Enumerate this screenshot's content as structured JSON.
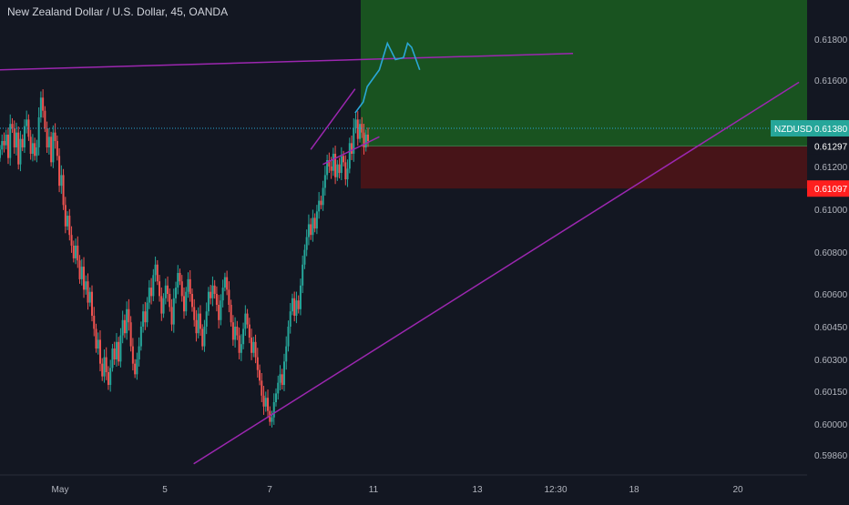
{
  "header": {
    "title": "New Zealand Dollar / U.S. Dollar, 45, OANDA"
  },
  "colors": {
    "background": "#131722",
    "up_candle": "#26a69a",
    "down_candle": "#ef5350",
    "trendline": "#9c27b0",
    "target_zone": "#1b5e20",
    "stop_zone": "#4a1418",
    "projection": "#2aa7d6",
    "price_label": "#26a69a",
    "stop_label": "#ff1f1f"
  },
  "chart_data": {
    "type": "candlestick",
    "symbol": "NZDUSD",
    "y_ticks": [
      "0.61800",
      "0.61600",
      "0.61380",
      "0.61297",
      "0.61200",
      "0.61097",
      "0.61000",
      "0.60800",
      "0.60600",
      "0.60450",
      "0.60300",
      "0.60150",
      "0.60000",
      "0.59860"
    ],
    "x_ticks": [
      "May",
      "5",
      "7",
      "11",
      "13",
      "12:30",
      "18",
      "20"
    ],
    "current_price": {
      "label": "NZDUSD",
      "value": "0.61380"
    },
    "entry_price": "0.61297",
    "stop_price": "0.61097",
    "target_price_top": 0.6192,
    "trendlines": [
      {
        "name": "upper-resistance",
        "from": [
          0.0,
          0.6165
        ],
        "to": [
          0.71,
          0.6187
        ]
      },
      {
        "name": "rising-support",
        "from": [
          0.24,
          0.5982
        ],
        "to": [
          0.99,
          0.6159
        ]
      },
      {
        "name": "channel-upper",
        "from": [
          0.385,
          0.6128
        ],
        "to": [
          0.44,
          0.6156
        ]
      },
      {
        "name": "channel-lower",
        "from": [
          0.4,
          0.6121
        ],
        "to": [
          0.47,
          0.6134
        ]
      }
    ],
    "projection_path": [
      [
        0.44,
        0.6145
      ],
      [
        0.45,
        0.615
      ],
      [
        0.455,
        0.6157
      ],
      [
        0.47,
        0.6165
      ],
      [
        0.48,
        0.6182
      ],
      [
        0.49,
        0.619
      ],
      [
        0.5,
        0.6189
      ],
      [
        0.505,
        0.6178
      ],
      [
        0.51,
        0.6176
      ],
      [
        0.52,
        0.6195
      ]
    ],
    "close_series": [
      0.6128,
      0.6132,
      0.613,
      0.6135,
      0.6124,
      0.614,
      0.6138,
      0.6129,
      0.6136,
      0.6121,
      0.6133,
      0.6129,
      0.6139,
      0.6142,
      0.6134,
      0.6126,
      0.6131,
      0.6125,
      0.6129,
      0.6143,
      0.6152,
      0.6146,
      0.6138,
      0.6129,
      0.6134,
      0.6122,
      0.6136,
      0.6132,
      0.6125,
      0.6111,
      0.6116,
      0.6102,
      0.6092,
      0.6097,
      0.6088,
      0.6083,
      0.6077,
      0.6083,
      0.6076,
      0.6067,
      0.6073,
      0.6062,
      0.6066,
      0.6056,
      0.6061,
      0.605,
      0.6044,
      0.6035,
      0.6039,
      0.6028,
      0.6022,
      0.6031,
      0.6024,
      0.6018,
      0.6026,
      0.6035,
      0.603,
      0.6038,
      0.6029,
      0.6041,
      0.6048,
      0.6042,
      0.6053,
      0.6047,
      0.6036,
      0.6028,
      0.6023,
      0.603,
      0.6036,
      0.6045,
      0.6052,
      0.6047,
      0.6056,
      0.6063,
      0.6059,
      0.6069,
      0.6074,
      0.6066,
      0.6059,
      0.6051,
      0.6058,
      0.6064,
      0.606,
      0.6054,
      0.6046,
      0.6058,
      0.6063,
      0.607,
      0.6066,
      0.6059,
      0.6052,
      0.6061,
      0.6067,
      0.606,
      0.6054,
      0.6048,
      0.6042,
      0.6051,
      0.6044,
      0.6036,
      0.6045,
      0.6052,
      0.6061,
      0.6058,
      0.6064,
      0.606,
      0.6055,
      0.6048,
      0.6057,
      0.6063,
      0.6068,
      0.6062,
      0.6055,
      0.6047,
      0.6039,
      0.6045,
      0.6041,
      0.6033,
      0.6037,
      0.6044,
      0.6051,
      0.6046,
      0.604,
      0.6033,
      0.6038,
      0.6031,
      0.6025,
      0.602,
      0.6013,
      0.6008,
      0.6012,
      0.6006,
      0.6001,
      0.6003,
      0.601,
      0.6014,
      0.6019,
      0.6023,
      0.6018,
      0.6029,
      0.6036,
      0.6045,
      0.6052,
      0.6058,
      0.605,
      0.6057,
      0.6053,
      0.6064,
      0.6074,
      0.6081,
      0.6087,
      0.6093,
      0.6088,
      0.6096,
      0.6091,
      0.6099,
      0.6104,
      0.6102,
      0.611,
      0.6116,
      0.6123,
      0.612,
      0.6118,
      0.6126,
      0.6115,
      0.6121,
      0.6117,
      0.6125,
      0.6122,
      0.6114,
      0.6119,
      0.6131,
      0.6126,
      0.6138,
      0.6142,
      0.6133,
      0.614,
      0.6136,
      0.6129,
      0.6135,
      0.6132
    ]
  }
}
